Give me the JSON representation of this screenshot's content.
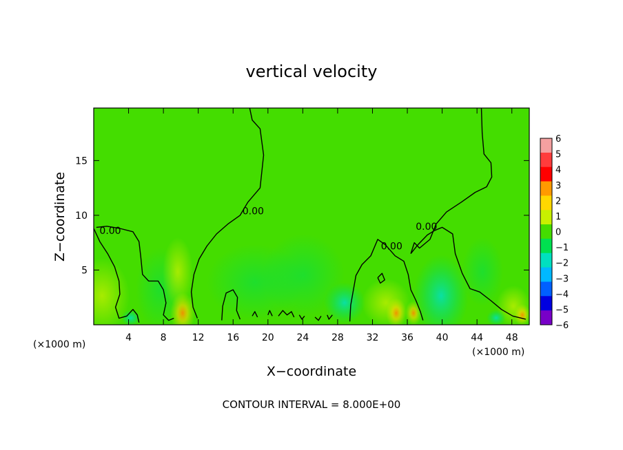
{
  "chart_data": {
    "type": "heatmap",
    "title": "vertical velocity",
    "xlabel": "X−coordinate",
    "ylabel": "Z−coordinate",
    "x_unit_label": "(×1000 m)",
    "y_unit_label": "(×1000 m)",
    "footer": "CONTOUR INTERVAL = 8.000E+00",
    "xlim": [
      0,
      50
    ],
    "ylim": [
      0,
      19.8
    ],
    "x_ticks": [
      4,
      8,
      12,
      16,
      20,
      24,
      28,
      32,
      36,
      40,
      44,
      48
    ],
    "y_ticks": [
      5,
      10,
      15
    ],
    "x_tick_labels": [
      "4",
      "8",
      "12",
      "16",
      "20",
      "24",
      "28",
      "32",
      "36",
      "40",
      "44",
      "48"
    ],
    "y_tick_labels": [
      "5",
      "10",
      "15"
    ],
    "colorbar": {
      "levels": [
        6,
        5,
        4,
        3,
        2,
        1,
        0,
        -1,
        -2,
        -3,
        -4,
        -5,
        -6
      ],
      "labels": [
        "6",
        "5",
        "4",
        "3",
        "2",
        "1",
        "0",
        "−1",
        "−2",
        "−3",
        "−4",
        "−5",
        "−6"
      ],
      "colors": [
        "#f4a0a0",
        "#ff3c3c",
        "#ff0000",
        "#ff9a00",
        "#ffd800",
        "#c8f000",
        "#44dd00",
        "#00e050",
        "#00e0c0",
        "#00b8ff",
        "#0060ff",
        "#0000e0",
        "#7800c8"
      ]
    },
    "contour_labels": [
      {
        "text": "0.00",
        "x": 1.9,
        "y": 8.6
      },
      {
        "text": "0.00",
        "x": 18.3,
        "y": 10.4
      },
      {
        "text": "0.00",
        "x": 34.2,
        "y": 7.2
      },
      {
        "text": "0.00",
        "x": 38.2,
        "y": 9.0
      }
    ],
    "contours": [
      [
        [
          0,
          8.8
        ],
        [
          0.7,
          7.6
        ],
        [
          1.6,
          6.5
        ],
        [
          2.4,
          5.3
        ],
        [
          2.9,
          4.0
        ],
        [
          3.0,
          2.8
        ],
        [
          2.5,
          1.6
        ],
        [
          2.9,
          0.6
        ],
        [
          3.8,
          0.8
        ],
        [
          4.5,
          1.4
        ],
        [
          5.0,
          0.9
        ],
        [
          5.2,
          0.2
        ]
      ],
      [
        [
          0.3,
          8.9
        ],
        [
          1.5,
          9.0
        ],
        [
          3.0,
          8.8
        ],
        [
          4.5,
          8.5
        ],
        [
          5.2,
          7.6
        ],
        [
          5.4,
          6.2
        ],
        [
          5.6,
          4.6
        ],
        [
          6.3,
          4.0
        ],
        [
          7.4,
          4.0
        ],
        [
          8.0,
          3.2
        ],
        [
          8.3,
          2.0
        ],
        [
          8.0,
          0.9
        ],
        [
          8.6,
          0.4
        ],
        [
          9.2,
          0.6
        ]
      ],
      [
        [
          17.9,
          19.8
        ],
        [
          18.2,
          18.7
        ],
        [
          19.1,
          17.9
        ],
        [
          19.5,
          15.5
        ],
        [
          19.1,
          12.5
        ],
        [
          17.7,
          11.2
        ],
        [
          16.8,
          10.0
        ],
        [
          15.4,
          9.2
        ],
        [
          14.1,
          8.3
        ],
        [
          13.0,
          7.2
        ],
        [
          12.1,
          6.0
        ],
        [
          11.5,
          4.6
        ],
        [
          11.2,
          3.0
        ],
        [
          11.4,
          1.6
        ],
        [
          11.9,
          0.6
        ]
      ],
      [
        [
          14.7,
          0.4
        ],
        [
          14.8,
          1.7
        ],
        [
          15.2,
          2.9
        ],
        [
          16.0,
          3.2
        ],
        [
          16.5,
          2.5
        ],
        [
          16.4,
          1.3
        ],
        [
          16.8,
          0.5
        ]
      ],
      [
        [
          29.4,
          0.3
        ],
        [
          29.5,
          1.8
        ],
        [
          30.1,
          4.5
        ],
        [
          30.8,
          5.5
        ],
        [
          31.8,
          6.3
        ],
        [
          32.6,
          7.8
        ],
        [
          33.5,
          7.3
        ],
        [
          34.6,
          6.3
        ],
        [
          35.6,
          5.8
        ],
        [
          36.1,
          4.6
        ],
        [
          36.4,
          3.2
        ],
        [
          37.0,
          2.2
        ],
        [
          37.5,
          1.2
        ],
        [
          37.8,
          0.4
        ]
      ],
      [
        [
          36.4,
          6.5
        ],
        [
          37.2,
          7.3
        ],
        [
          38.3,
          8.2
        ],
        [
          39.1,
          8.6
        ],
        [
          40.0,
          8.9
        ],
        [
          41.2,
          8.3
        ],
        [
          41.5,
          6.5
        ],
        [
          42.3,
          4.7
        ],
        [
          43.2,
          3.3
        ],
        [
          44.3,
          3.0
        ],
        [
          45.6,
          2.2
        ],
        [
          46.8,
          1.4
        ],
        [
          48.1,
          0.8
        ],
        [
          49.6,
          0.5
        ]
      ],
      [
        [
          44.5,
          19.8
        ],
        [
          44.6,
          17.5
        ],
        [
          44.8,
          15.6
        ],
        [
          45.6,
          14.8
        ],
        [
          45.7,
          13.5
        ],
        [
          45.1,
          12.6
        ],
        [
          43.8,
          12.1
        ],
        [
          42.2,
          11.2
        ],
        [
          40.5,
          10.3
        ],
        [
          39.3,
          9.2
        ],
        [
          38.6,
          7.8
        ],
        [
          37.4,
          7.0
        ],
        [
          36.8,
          7.5
        ],
        [
          36.4,
          6.5
        ]
      ],
      [
        [
          32.6,
          4.3
        ],
        [
          33.1,
          4.7
        ],
        [
          33.4,
          4.1
        ],
        [
          32.9,
          3.8
        ],
        [
          32.6,
          4.3
        ]
      ],
      [
        [
          18.2,
          0.8
        ],
        [
          18.5,
          1.2
        ],
        [
          18.8,
          0.7
        ]
      ],
      [
        [
          20.0,
          0.9
        ],
        [
          20.2,
          1.3
        ],
        [
          20.5,
          0.8
        ]
      ],
      [
        [
          21.2,
          0.8
        ],
        [
          21.7,
          1.3
        ],
        [
          22.2,
          0.9
        ],
        [
          22.7,
          1.2
        ],
        [
          23.0,
          0.7
        ]
      ],
      [
        [
          23.6,
          0.9
        ],
        [
          23.9,
          0.5
        ],
        [
          24.2,
          0.8
        ]
      ],
      [
        [
          25.4,
          0.7
        ],
        [
          25.8,
          0.4
        ],
        [
          26.1,
          0.8
        ]
      ],
      [
        [
          26.8,
          0.9
        ],
        [
          27.0,
          0.5
        ],
        [
          27.4,
          0.9
        ]
      ]
    ]
  }
}
